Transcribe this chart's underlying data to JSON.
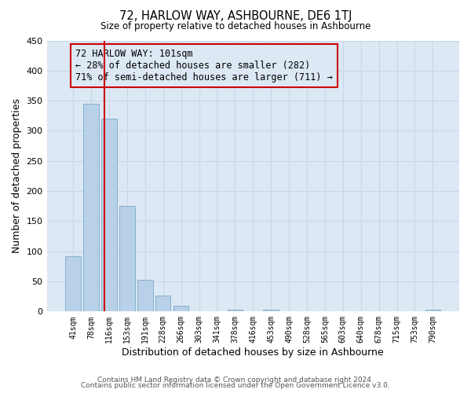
{
  "title": "72, HARLOW WAY, ASHBOURNE, DE6 1TJ",
  "subtitle": "Size of property relative to detached houses in Ashbourne",
  "xlabel": "Distribution of detached houses by size in Ashbourne",
  "ylabel": "Number of detached properties",
  "bar_labels": [
    "41sqm",
    "78sqm",
    "116sqm",
    "153sqm",
    "191sqm",
    "228sqm",
    "266sqm",
    "303sqm",
    "341sqm",
    "378sqm",
    "416sqm",
    "453sqm",
    "490sqm",
    "528sqm",
    "565sqm",
    "603sqm",
    "640sqm",
    "678sqm",
    "715sqm",
    "753sqm",
    "790sqm"
  ],
  "bar_values": [
    92,
    345,
    320,
    175,
    52,
    26,
    9,
    0,
    0,
    3,
    0,
    3,
    0,
    0,
    0,
    0,
    0,
    0,
    0,
    0,
    3
  ],
  "bar_color": "#b8d0e8",
  "bar_edge_color": "#7aaac8",
  "grid_color": "#c8d8e8",
  "plot_bg_color": "#dce8f4",
  "fig_bg_color": "#ffffff",
  "vline_x": 1.73,
  "vline_color": "#cc0000",
  "annotation_text": "72 HARLOW WAY: 101sqm\n← 28% of detached houses are smaller (282)\n71% of semi-detached houses are larger (711) →",
  "annotation_box_facecolor": "#dce8f4",
  "annotation_box_edgecolor": "#cc0000",
  "ylim": [
    0,
    450
  ],
  "yticks": [
    0,
    50,
    100,
    150,
    200,
    250,
    300,
    350,
    400,
    450
  ],
  "footer1": "Contains HM Land Registry data © Crown copyright and database right 2024.",
  "footer2": "Contains public sector information licensed under the Open Government Licence v3.0."
}
